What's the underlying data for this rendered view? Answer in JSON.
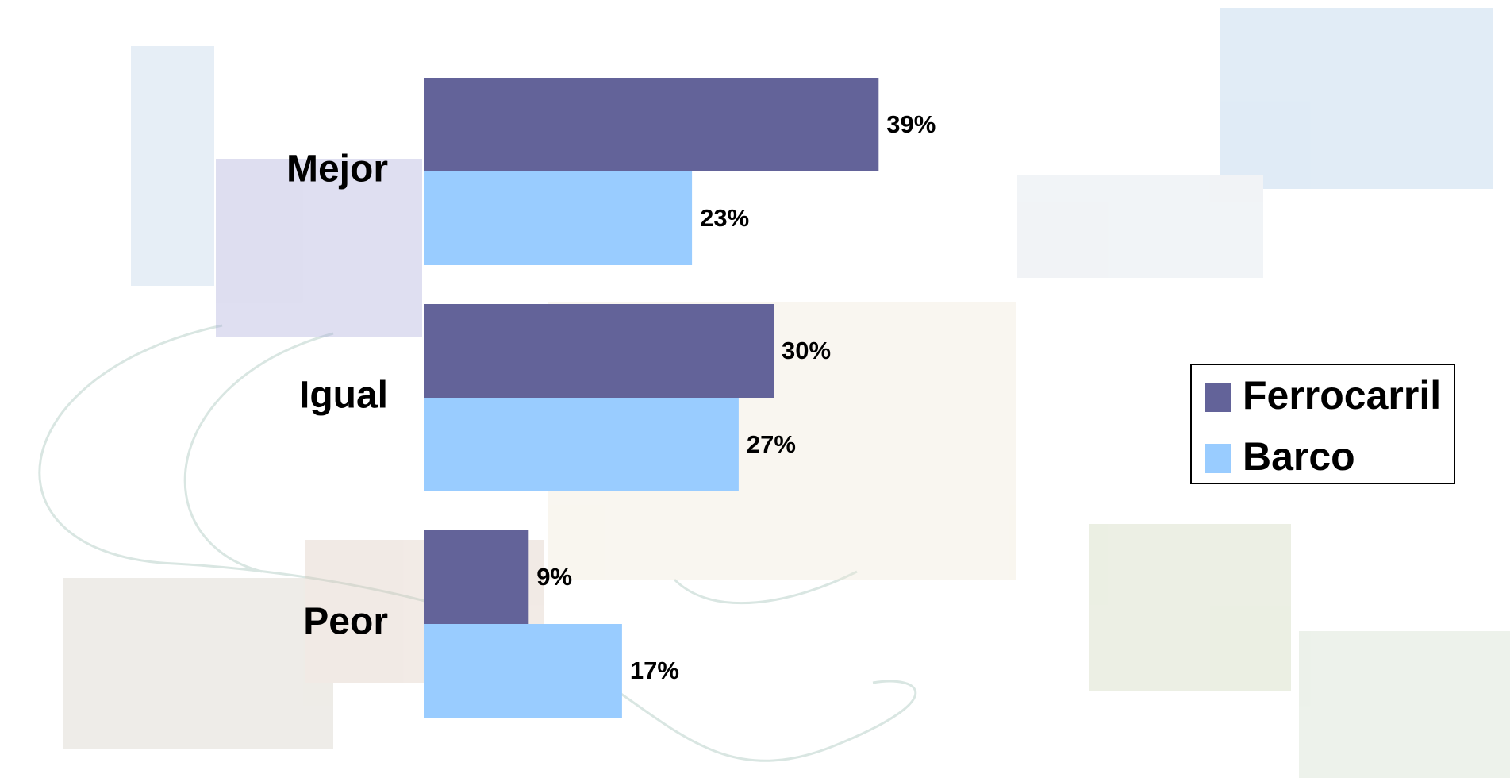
{
  "chart_data": {
    "type": "bar",
    "orientation": "horizontal",
    "categories": [
      "Mejor",
      "Igual",
      "Peor"
    ],
    "series": [
      {
        "name": "Ferrocarril",
        "color": "#636399",
        "values": [
          39,
          30,
          9
        ],
        "value_labels": [
          "39%",
          "30%",
          "9%"
        ]
      },
      {
        "name": "Barco",
        "color": "#99ccff",
        "values": [
          23,
          27,
          17
        ],
        "value_labels": [
          "23%",
          "27%",
          "17%"
        ]
      }
    ],
    "legend": "right"
  }
}
